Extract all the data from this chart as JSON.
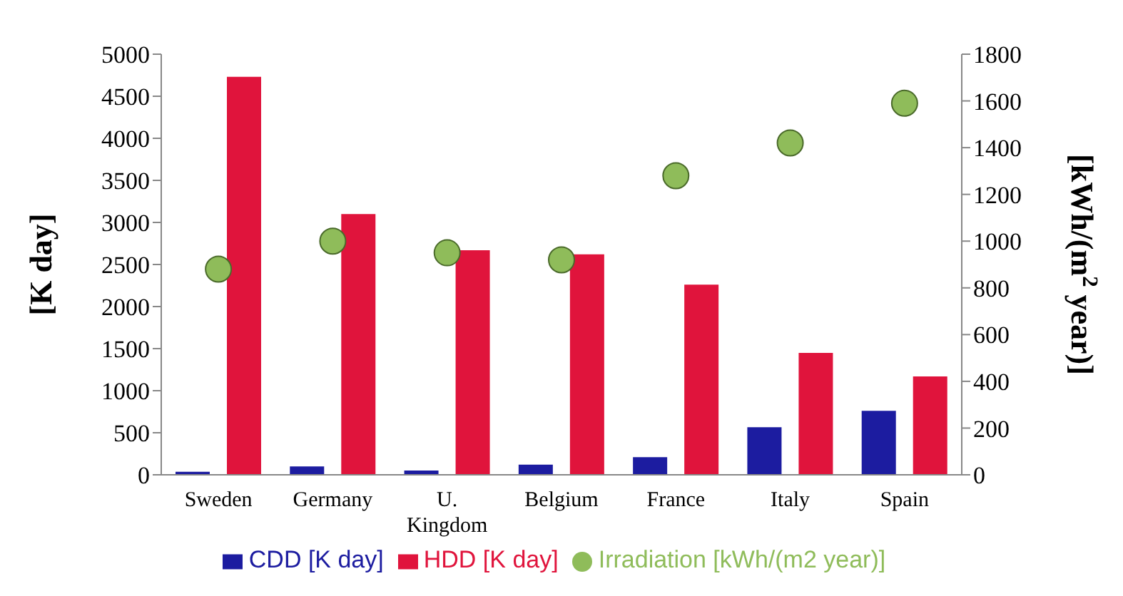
{
  "chart_data": {
    "type": "bar",
    "categories": [
      "Sweden",
      "Germany",
      "U. Kingdom",
      "Belgium",
      "France",
      "Italy",
      "Spain"
    ],
    "series": [
      {
        "name": "CDD [K day]",
        "color": "#1c1ca0",
        "values": [
          35,
          100,
          50,
          120,
          210,
          565,
          760
        ]
      },
      {
        "name": "HDD [K day]",
        "color": "#e0143c",
        "values": [
          4730,
          3100,
          2670,
          2620,
          2260,
          1450,
          1170
        ]
      },
      {
        "name": "Irradiation [kWh/(m2 year)]",
        "type": "scatter",
        "axis": "y2",
        "color": "#8fbc5a",
        "values": [
          880,
          1000,
          950,
          920,
          1280,
          1420,
          1590
        ]
      }
    ],
    "ylabel": "[K day]",
    "y2label": "[kWh/(m$^{2}$ year)]",
    "ylim": [
      0,
      5000
    ],
    "yticks": [
      0,
      500,
      1000,
      1500,
      2000,
      2500,
      3000,
      3500,
      4000,
      4500,
      5000
    ],
    "y2lim": [
      0,
      1800
    ],
    "y2ticks": [
      0,
      200,
      400,
      600,
      800,
      1000,
      1200,
      1400,
      1600,
      1800
    ],
    "legend": "bottom",
    "marker": "circle",
    "grid": false
  }
}
